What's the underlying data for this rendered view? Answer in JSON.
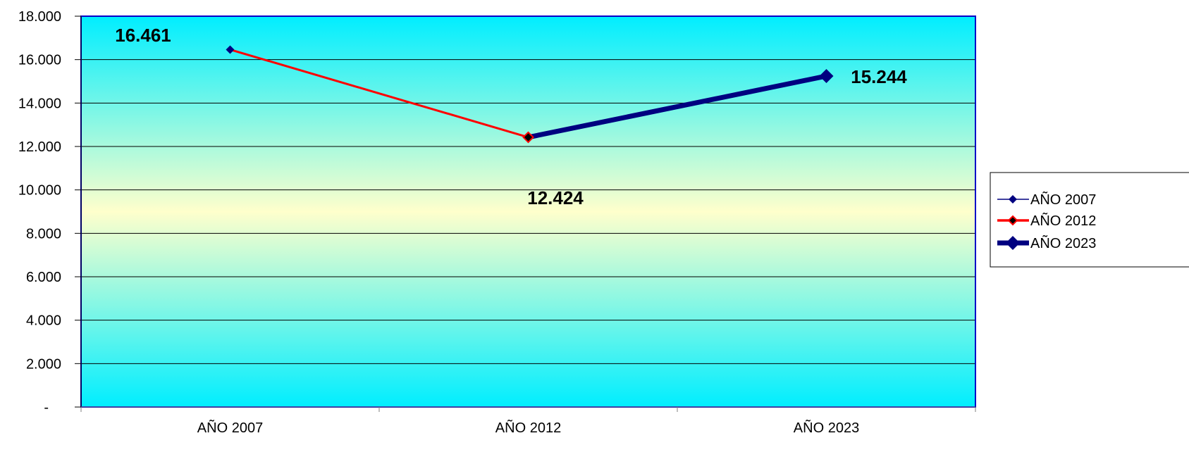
{
  "chart_data": {
    "type": "line",
    "categories": [
      "AÑO 2007",
      "AÑO 2012",
      "AÑO 2023"
    ],
    "ylim": [
      0,
      18000
    ],
    "yticks": [
      0,
      2000,
      4000,
      6000,
      8000,
      10000,
      12000,
      14000,
      16000,
      18000
    ],
    "ytick_labels": [
      "-",
      "2.000",
      "4.000",
      "6.000",
      "8.000",
      "10.000",
      "12.000",
      "14.000",
      "16.000",
      "18.000"
    ],
    "grid": true,
    "legend_position": "right",
    "series": [
      {
        "name": "AÑO 2007",
        "color": "#000080",
        "marker": "diamond"
      },
      {
        "name": "AÑO 2012",
        "color": "#ff0000",
        "marker": "diamond"
      },
      {
        "name": "AÑO 2023",
        "color": "#000080",
        "marker": "diamond"
      }
    ],
    "points": [
      {
        "category": "AÑO 2007",
        "value": 16461,
        "label": "16.461"
      },
      {
        "category": "AÑO 2012",
        "value": 12424,
        "label": "12.424"
      },
      {
        "category": "AÑO 2023",
        "value": 15244,
        "label": "15.244"
      }
    ],
    "segments": [
      {
        "from": 0,
        "to": 1,
        "color": "#ff0000",
        "weight": "medium"
      },
      {
        "from": 1,
        "to": 2,
        "color": "#000080",
        "weight": "thick"
      }
    ],
    "colors": {
      "plot_border": "#0000c8",
      "gradient_edge": "#00eeff",
      "gradient_center": "#ffffcc",
      "gridline": "#000000"
    }
  }
}
